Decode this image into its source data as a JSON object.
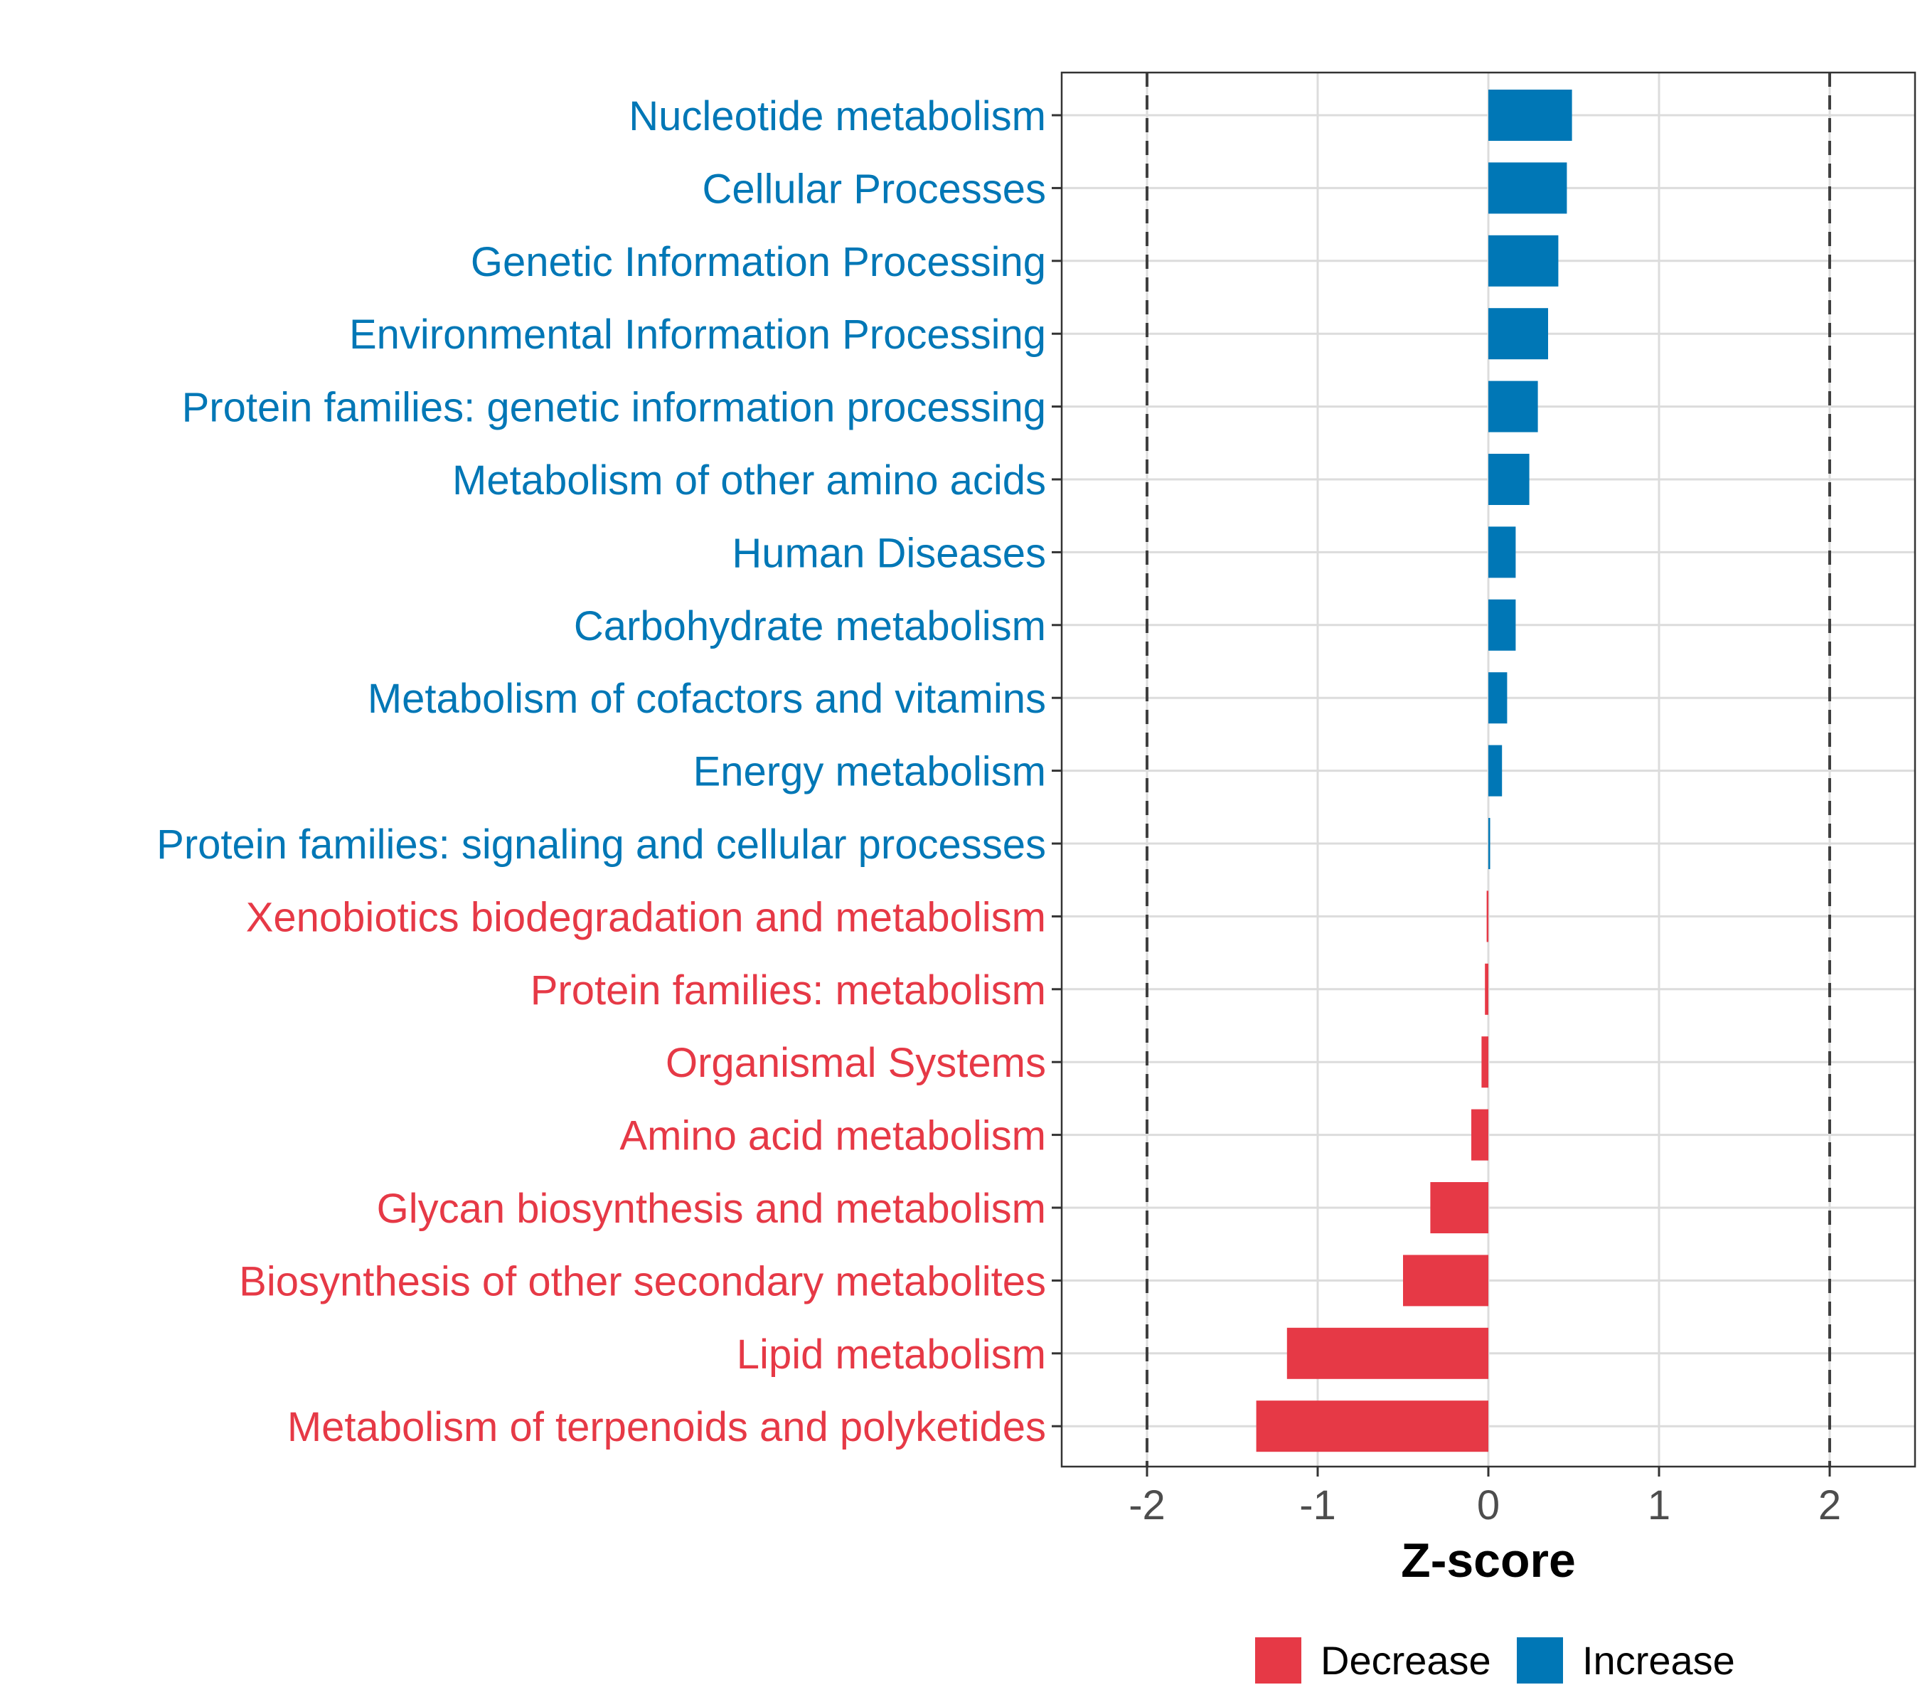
{
  "chart_data": {
    "type": "bar",
    "orientation": "horizontal",
    "title": "",
    "xlabel": "Z-score",
    "ylabel": "",
    "xlim": [
      -2.5,
      2.5
    ],
    "x_ticks": [
      -2,
      -1,
      0,
      1,
      2
    ],
    "x_tick_labels": [
      "-2",
      "-1",
      "0",
      "1",
      "2"
    ],
    "reference_lines": [
      -2,
      2
    ],
    "grid": true,
    "categories": [
      "Nucleotide metabolism",
      "Cellular Processes",
      "Genetic Information Processing",
      "Environmental Information Processing",
      "Protein families: genetic information processing",
      "Metabolism of other amino acids",
      "Human Diseases",
      "Carbohydrate metabolism",
      "Metabolism of cofactors and vitamins",
      "Energy metabolism",
      "Protein families: signaling and cellular processes",
      "Xenobiotics biodegradation and metabolism",
      "Protein families: metabolism",
      "Organismal Systems",
      "Amino acid metabolism",
      "Glycan biosynthesis and metabolism",
      "Biosynthesis of other secondary metabolites",
      "Lipid metabolism",
      "Metabolism of terpenoids and polyketides"
    ],
    "values": [
      0.49,
      0.46,
      0.41,
      0.35,
      0.29,
      0.24,
      0.16,
      0.16,
      0.11,
      0.08,
      0.01,
      -0.01,
      -0.02,
      -0.04,
      -0.1,
      -0.34,
      -0.5,
      -1.18,
      -1.36
    ],
    "groups": [
      "Increase",
      "Increase",
      "Increase",
      "Increase",
      "Increase",
      "Increase",
      "Increase",
      "Increase",
      "Increase",
      "Increase",
      "Increase",
      "Decrease",
      "Decrease",
      "Decrease",
      "Decrease",
      "Decrease",
      "Decrease",
      "Decrease",
      "Decrease"
    ],
    "legend": {
      "placement": "bottom",
      "entries": [
        {
          "label": "Decrease",
          "color": "#e63946"
        },
        {
          "label": "Increase",
          "color": "#0077b6"
        }
      ]
    }
  }
}
